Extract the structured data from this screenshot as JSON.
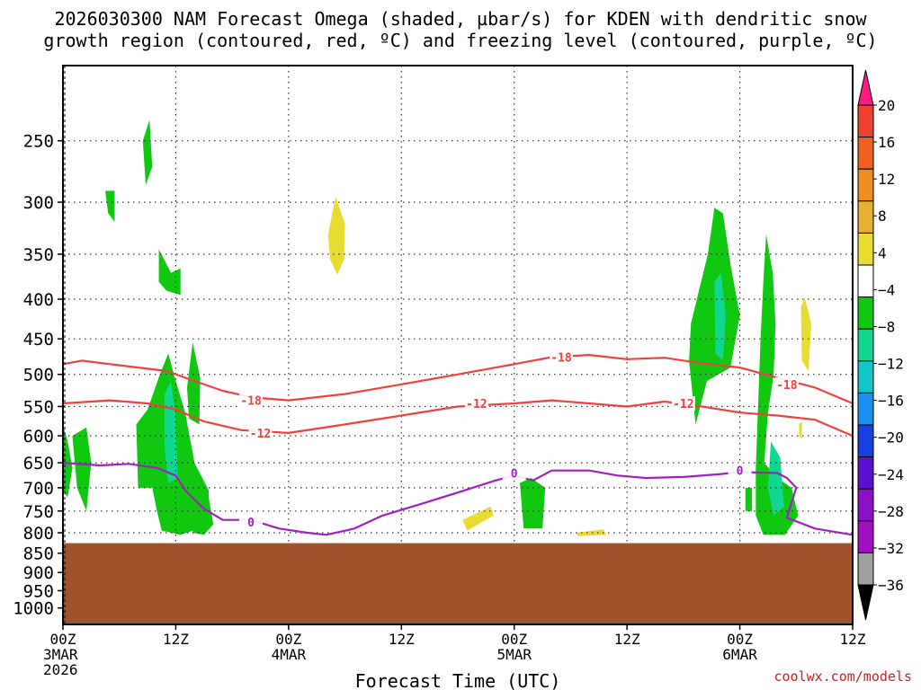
{
  "chart": {
    "title_line1": "2026030300 NAM Forecast Omega (shaded, µbar/s) for KDEN with dendritic snow",
    "title_line2": "growth region (contoured, red, ºC) and freezing level (contoured, purple, ºC)",
    "credit": "coolwx.com/models"
  },
  "chart_data": {
    "type": "heatmap",
    "xlabel": "Forecast Time (UTC)",
    "ylabel": "",
    "x_unit": "hours since 2026-03-03 00Z",
    "xlim": [
      0,
      84
    ],
    "y_unit": "hPa",
    "ylim": [
      1050,
      200
    ],
    "y_scale": "log",
    "grid": true,
    "x_ticks": [
      {
        "h": 0,
        "lines": [
          "00Z",
          "3MAR",
          "2026"
        ]
      },
      {
        "h": 12,
        "lines": [
          "12Z"
        ]
      },
      {
        "h": 24,
        "lines": [
          "00Z",
          "4MAR"
        ]
      },
      {
        "h": 36,
        "lines": [
          "12Z"
        ]
      },
      {
        "h": 48,
        "lines": [
          "00Z",
          "5MAR"
        ]
      },
      {
        "h": 60,
        "lines": [
          "12Z"
        ]
      },
      {
        "h": 72,
        "lines": [
          "00Z",
          "6MAR"
        ]
      },
      {
        "h": 84,
        "lines": [
          "12Z"
        ]
      }
    ],
    "y_ticks": [
      250,
      300,
      350,
      400,
      450,
      500,
      550,
      600,
      650,
      700,
      750,
      800,
      850,
      900,
      950,
      1000
    ],
    "terrain_surface_pressure": 825,
    "colorbar": {
      "labels": [
        "20",
        "16",
        "12",
        "8",
        "4",
        "−4",
        "−8",
        "−12",
        "−16",
        "−20",
        "−24",
        "−28",
        "−32",
        "−36"
      ],
      "colors": [
        "#ff1a80",
        "#f04030",
        "#f06020",
        "#f08c20",
        "#e8b030",
        "#e8dc30",
        "#ffffff",
        "#10c810",
        "#10d890",
        "#10c8c8",
        "#1890f0",
        "#1840e0",
        "#5a10d0",
        "#8a10c8",
        "#a010c0",
        "#a0a0a0",
        "#000000"
      ]
    },
    "contours": [
      {
        "name": "-18",
        "color": "#f04040",
        "points": [
          [
            0,
            485
          ],
          [
            2,
            480
          ],
          [
            5,
            485
          ],
          [
            8,
            490
          ],
          [
            11,
            495
          ],
          [
            14,
            510
          ],
          [
            17,
            525
          ],
          [
            20,
            535
          ],
          [
            24,
            540
          ],
          [
            30,
            530
          ],
          [
            36,
            515
          ],
          [
            42,
            500
          ],
          [
            48,
            485
          ],
          [
            52,
            475
          ],
          [
            56,
            472
          ],
          [
            60,
            478
          ],
          [
            64,
            476
          ],
          [
            68,
            484
          ],
          [
            72,
            490
          ],
          [
            76,
            505
          ],
          [
            80,
            520
          ],
          [
            84,
            545
          ]
        ],
        "labels": [
          {
            "x": 20,
            "y": 540,
            "text": "-18"
          },
          {
            "x": 53,
            "y": 475,
            "text": "-18"
          },
          {
            "x": 77,
            "y": 515,
            "text": "-18"
          }
        ]
      },
      {
        "name": "-12",
        "color": "#f04040",
        "points": [
          [
            0,
            545
          ],
          [
            5,
            540
          ],
          [
            9,
            545
          ],
          [
            12,
            555
          ],
          [
            15,
            575
          ],
          [
            19,
            590
          ],
          [
            24,
            595
          ],
          [
            30,
            580
          ],
          [
            36,
            565
          ],
          [
            42,
            550
          ],
          [
            48,
            545
          ],
          [
            52,
            540
          ],
          [
            56,
            545
          ],
          [
            60,
            550
          ],
          [
            64,
            542
          ],
          [
            68,
            550
          ],
          [
            72,
            560
          ],
          [
            76,
            565
          ],
          [
            80,
            572
          ],
          [
            84,
            600
          ]
        ],
        "labels": [
          {
            "x": 21,
            "y": 595,
            "text": "-12"
          },
          {
            "x": 44,
            "y": 545,
            "text": "-12"
          },
          {
            "x": 66,
            "y": 545,
            "text": "-12"
          }
        ]
      },
      {
        "name": "0",
        "color": "#a020c0",
        "points": [
          [
            0,
            650
          ],
          [
            4,
            655
          ],
          [
            7,
            652
          ],
          [
            10,
            660
          ],
          [
            12,
            675
          ],
          [
            13,
            705
          ],
          [
            15,
            745
          ],
          [
            17,
            770
          ],
          [
            20,
            770
          ],
          [
            23,
            790
          ],
          [
            26,
            800
          ],
          [
            28,
            805
          ],
          [
            31,
            790
          ],
          [
            34,
            760
          ],
          [
            38,
            735
          ],
          [
            42,
            710
          ],
          [
            46,
            685
          ],
          [
            48,
            675
          ],
          [
            50,
            685
          ],
          [
            52,
            665
          ],
          [
            56,
            665
          ],
          [
            59,
            675
          ],
          [
            62,
            680
          ],
          [
            66,
            678
          ],
          [
            70,
            672
          ],
          [
            72,
            668
          ],
          [
            76,
            670
          ],
          [
            77,
            680
          ],
          [
            78,
            700
          ],
          [
            77,
            765
          ],
          [
            80,
            790
          ],
          [
            84,
            805
          ]
        ],
        "labels": [
          {
            "x": 20,
            "y": 775,
            "text": "0"
          },
          {
            "x": 48,
            "y": 670,
            "text": "0"
          },
          {
            "x": 72,
            "y": 665,
            "text": "0"
          }
        ]
      }
    ],
    "shaded_regions": [
      {
        "value": -4,
        "points": [
          [
            -0.2,
            570
          ],
          [
            0.5,
            610
          ],
          [
            1,
            660
          ],
          [
            0.5,
            720
          ],
          [
            -0.2,
            700
          ]
        ]
      },
      {
        "value": -4,
        "points": [
          [
            1,
            600
          ],
          [
            2.5,
            585
          ],
          [
            3,
            650
          ],
          [
            2.5,
            750
          ],
          [
            1.5,
            700
          ]
        ]
      },
      {
        "value": -4,
        "points": [
          [
            8.5,
            250
          ],
          [
            9.2,
            235
          ],
          [
            9.5,
            270
          ],
          [
            8.8,
            285
          ]
        ]
      },
      {
        "value": -4,
        "points": [
          [
            4.5,
            290
          ],
          [
            5.5,
            290
          ],
          [
            5.5,
            318
          ],
          [
            4.8,
            310
          ]
        ]
      },
      {
        "value": -4,
        "points": [
          [
            10.2,
            345
          ],
          [
            11.5,
            370
          ],
          [
            12.5,
            365
          ],
          [
            12.5,
            395
          ],
          [
            11,
            390
          ],
          [
            10.2,
            380
          ]
        ]
      },
      {
        "value": -4,
        "points": [
          [
            7.8,
            580
          ],
          [
            9,
            555
          ],
          [
            10.3,
            500
          ],
          [
            11.2,
            470
          ],
          [
            12,
            510
          ],
          [
            13,
            560
          ],
          [
            14,
            650
          ],
          [
            15.5,
            705
          ],
          [
            15.5,
            760
          ],
          [
            14.5,
            790
          ],
          [
            12.5,
            805
          ],
          [
            10.5,
            795
          ],
          [
            10,
            750
          ],
          [
            9.5,
            700
          ],
          [
            8,
            700
          ]
        ]
      },
      {
        "value": -4,
        "points": [
          [
            13.2,
            520
          ],
          [
            13.8,
            455
          ],
          [
            14.6,
            505
          ],
          [
            14.5,
            580
          ],
          [
            13.4,
            570
          ]
        ]
      },
      {
        "value": -4,
        "points": [
          [
            14.2,
            700
          ],
          [
            15.5,
            720
          ],
          [
            16,
            780
          ],
          [
            15,
            805
          ],
          [
            13.8,
            800
          ]
        ]
      },
      {
        "value": -4,
        "points": [
          [
            48.6,
            690
          ],
          [
            49.8,
            680
          ],
          [
            51.3,
            700
          ],
          [
            51,
            790
          ],
          [
            49,
            790
          ]
        ]
      },
      {
        "value": -4,
        "points": [
          [
            66.8,
            430
          ],
          [
            68.6,
            350
          ],
          [
            69.3,
            305
          ],
          [
            70.2,
            310
          ],
          [
            71,
            360
          ],
          [
            72,
            420
          ],
          [
            71,
            490
          ],
          [
            68.5,
            510
          ],
          [
            67.3,
            580
          ],
          [
            66.6,
            480
          ]
        ]
      },
      {
        "value": -4,
        "points": [
          [
            72.6,
            700
          ],
          [
            73.3,
            700
          ],
          [
            73.3,
            750
          ],
          [
            72.6,
            750
          ]
        ]
      },
      {
        "value": -4,
        "points": [
          [
            74.2,
            450
          ],
          [
            74.5,
            380
          ],
          [
            74.8,
            330
          ],
          [
            75.5,
            370
          ],
          [
            75.8,
            430
          ],
          [
            75.6,
            500
          ],
          [
            75,
            560
          ],
          [
            74.6,
            650
          ],
          [
            76,
            680
          ],
          [
            77.5,
            700
          ],
          [
            78.2,
            760
          ],
          [
            76.8,
            805
          ],
          [
            74.5,
            805
          ],
          [
            73.7,
            760
          ],
          [
            73.7,
            660
          ]
        ]
      }
    ],
    "shaded_regions_secondary": [
      {
        "value": -8,
        "points": [
          [
            10.8,
            530
          ],
          [
            11.5,
            510
          ],
          [
            12,
            570
          ],
          [
            12.2,
            680
          ],
          [
            11.2,
            690
          ],
          [
            10.8,
            620
          ]
        ]
      },
      {
        "value": -8,
        "points": [
          [
            69.3,
            380
          ],
          [
            70,
            370
          ],
          [
            70.5,
            420
          ],
          [
            70.2,
            480
          ],
          [
            69.4,
            470
          ]
        ]
      },
      {
        "value": -8,
        "points": [
          [
            75.3,
            610
          ],
          [
            76.3,
            640
          ],
          [
            76.7,
            740
          ],
          [
            75.6,
            760
          ],
          [
            75,
            700
          ]
        ]
      }
    ],
    "shaded_regions_positive": [
      {
        "value": 4,
        "points": [
          [
            28.2,
            330
          ],
          [
            29,
            295
          ],
          [
            30,
            320
          ],
          [
            29.9,
            355
          ],
          [
            29.2,
            372
          ],
          [
            28.4,
            355
          ]
        ]
      },
      {
        "value": 4,
        "points": [
          [
            78.5,
            410
          ],
          [
            78.9,
            398
          ],
          [
            79.6,
            430
          ],
          [
            79.3,
            495
          ],
          [
            78.6,
            480
          ]
        ]
      },
      {
        "value": 4,
        "points": [
          [
            42.5,
            770
          ],
          [
            45.5,
            740
          ],
          [
            45.8,
            760
          ],
          [
            43,
            795
          ]
        ]
      },
      {
        "value": 4,
        "points": [
          [
            54.5,
            800
          ],
          [
            57.5,
            792
          ],
          [
            57.8,
            805
          ],
          [
            54.8,
            808
          ]
        ]
      },
      {
        "value": 4,
        "points": [
          [
            78.3,
            580
          ],
          [
            78.6,
            575
          ],
          [
            78.6,
            605
          ],
          [
            78.3,
            600
          ]
        ]
      }
    ]
  }
}
